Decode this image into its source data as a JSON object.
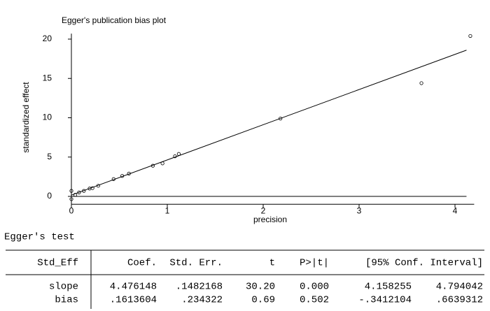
{
  "chart_data": {
    "type": "scatter",
    "title": "Egger's publication bias plot",
    "x_label": "precision",
    "y_label": "standardized effect",
    "x": [
      0,
      0,
      0.04,
      0.08,
      0.13,
      0.19,
      0.22,
      0.28,
      0.44,
      0.53,
      0.6,
      0.85,
      0.95,
      1.08,
      1.12,
      2.18,
      3.65,
      4.16
    ],
    "values": [
      0.7,
      -0.35,
      0.2,
      0.5,
      0.7,
      1.0,
      1.05,
      1.35,
      2.2,
      2.6,
      2.9,
      3.9,
      4.2,
      5.1,
      5.4,
      9.9,
      14.4,
      20.4
    ],
    "color": "#000000",
    "fit": {
      "x": [
        0,
        4.12
      ],
      "values": [
        0.16,
        18.6
      ]
    },
    "reference_line": 0,
    "xlim": [
      0,
      4.2
    ],
    "xticks": [
      0,
      1,
      2,
      3,
      4
    ],
    "ylim": [
      -1,
      20.7
    ],
    "yticks": [
      0,
      5,
      10,
      15,
      20
    ]
  },
  "table": {
    "title": "Egger's test",
    "header": [
      "Std_Eff",
      "Coef.",
      "Std. Err.",
      "t",
      "P>|t|",
      "[95% Conf. Interval]"
    ],
    "rows": [
      [
        "slope",
        "4.476148",
        ".1482168",
        "30.20",
        "0.000",
        "4.158255",
        "4.794042"
      ],
      [
        "bias",
        ".1613604",
        ".234322",
        "0.69",
        "0.502",
        "-.3412104",
        ".6639312"
      ]
    ]
  }
}
